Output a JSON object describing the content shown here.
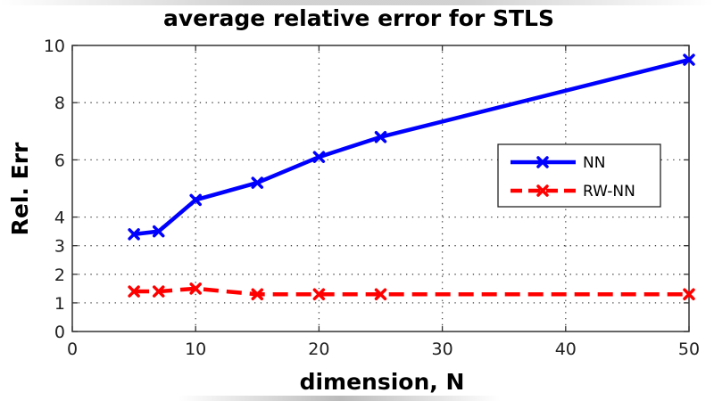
{
  "chart_data": {
    "type": "line",
    "title": "average relative error for STLS",
    "xlabel": "dimension, N",
    "ylabel": "Rel. Err",
    "xlim": [
      0,
      50
    ],
    "ylim": [
      0,
      10
    ],
    "xticks": [
      0,
      10,
      20,
      30,
      40,
      50
    ],
    "yticks": [
      0,
      1,
      2,
      3,
      4,
      6,
      8,
      10
    ],
    "grid": true,
    "legend_position": "right-middle",
    "x": [
      5,
      7,
      10,
      15,
      20,
      25,
      50
    ],
    "series": [
      {
        "name": "NN",
        "color": "#0000ff",
        "line_style": "solid",
        "marker": "x",
        "values": [
          3.4,
          3.5,
          4.6,
          5.2,
          6.1,
          6.8,
          9.5
        ]
      },
      {
        "name": "RW-NN",
        "color": "#ff0000",
        "line_style": "dashed",
        "marker": "x",
        "values": [
          1.4,
          1.4,
          1.5,
          1.3,
          1.3,
          1.3,
          1.3
        ]
      }
    ]
  }
}
